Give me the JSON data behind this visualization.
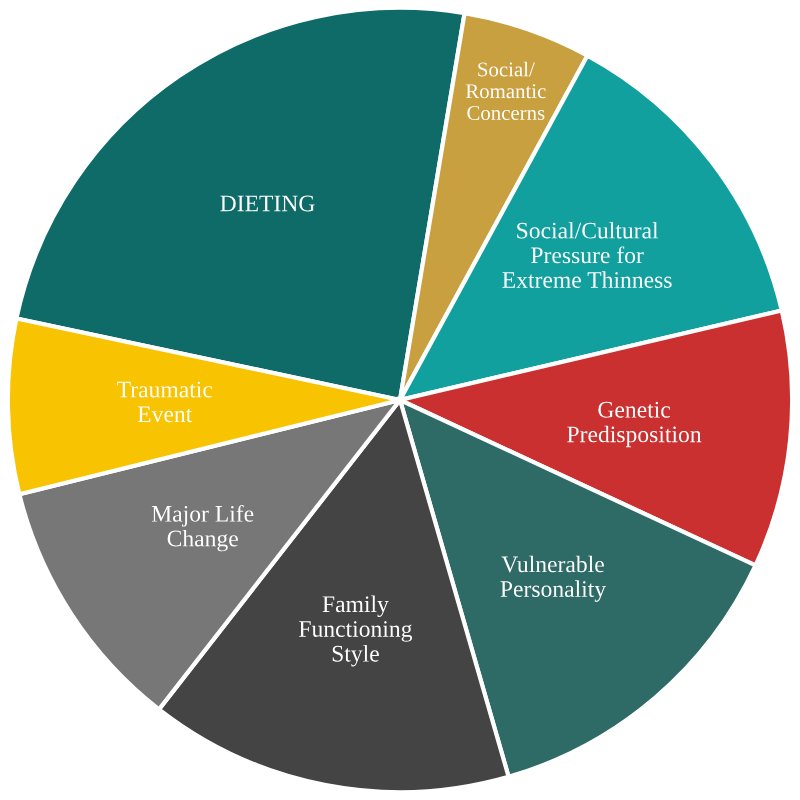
{
  "chart_data": {
    "type": "pie",
    "categories": [
      "DIETING",
      "Social/\nRomantic\nConcerns",
      "Social/Cultural\nPressure for\nExtreme Thinness",
      "Genetic\nPredisposition",
      "Vulnerable\nPersonality",
      "Family\nFunctioning\nStyle",
      "Major Life\nChange",
      "Traumatic\nEvent"
    ],
    "values": [
      24.3,
      5.3,
      13.4,
      10.6,
      13.6,
      15.0,
      10.6,
      7.2
    ],
    "colors": [
      "#0e6b68",
      "#c9a040",
      "#12a09f",
      "#c9302f",
      "#2f6b66",
      "#444444",
      "#777777",
      "#f8c300"
    ]
  }
}
